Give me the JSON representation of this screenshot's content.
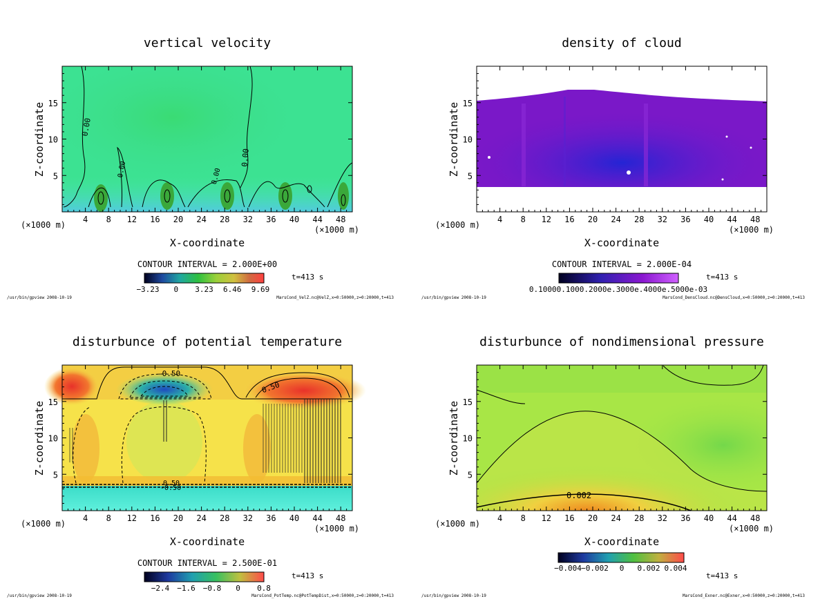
{
  "panels": [
    {
      "id": "velz",
      "title": "vertical velocity",
      "xlabel": "X-coordinate",
      "ylabel": "Z-coordinate",
      "x_unit": "(×1000 m)",
      "x_ticks": [
        "4",
        "8",
        "12",
        "16",
        "20",
        "24",
        "28",
        "32",
        "36",
        "40",
        "44",
        "48"
      ],
      "y_ticks": [
        "5",
        "10",
        "15"
      ],
      "contour_interval": "CONTOUR INTERVAL = 2.000E+00",
      "time": "t=413 s",
      "colorbar_ticks": [
        "−3.23",
        "0",
        "3.23",
        "6.46",
        "9.69"
      ],
      "contour_labels": [
        "0.00",
        "0.00",
        "0.00",
        "0.00"
      ],
      "footer_left": "/usr/bin/gpview   2008-10-19",
      "footer_right": "MarsCond_VelZ.nc@VelZ,x=0:50000,z=0:20000,t=413"
    },
    {
      "id": "denscloud",
      "title": "density of cloud",
      "xlabel": "X-coordinate",
      "ylabel": "Z-coordinate",
      "x_unit": "(×1000 m)",
      "x_ticks": [
        "4",
        "8",
        "12",
        "16",
        "20",
        "24",
        "28",
        "32",
        "36",
        "40",
        "44",
        "48"
      ],
      "y_ticks": [
        "5",
        "10",
        "15"
      ],
      "contour_interval": "CONTOUR INTERVAL = 2.000E-04",
      "time": "t=413 s",
      "colorbar_ticks": [
        "0.10000e-03",
        "0.20000e-03",
        "0.30000e-03",
        "0.40000e-03",
        "0.50000e-03"
      ],
      "colorbar_label_text": "0.10000.1000.2000e.3000e.4000e.5000e-03",
      "contour_labels": [],
      "footer_left": "/usr/bin/gpview   2008-10-19",
      "footer_right": "MarsCond_DensCloud.nc@DensCloud,x=0:50000,z=0:20000,t=413"
    },
    {
      "id": "pottemp",
      "title": "disturbunce of potential temperature",
      "xlabel": "X-coordinate",
      "ylabel": "Z-coordinate",
      "x_unit": "(×1000 m)",
      "x_ticks": [
        "4",
        "8",
        "12",
        "16",
        "20",
        "24",
        "28",
        "32",
        "36",
        "40",
        "44",
        "48"
      ],
      "y_ticks": [
        "5",
        "10",
        "15"
      ],
      "contour_interval": "CONTOUR INTERVAL = 2.500E-01",
      "time": "t=413 s",
      "colorbar_ticks": [
        "−2.4",
        "−1.6",
        "−0.8",
        "0",
        "0.8"
      ],
      "contour_labels": [
        "-0.50",
        "0.50",
        "-0.50",
        "0.50"
      ],
      "footer_left": "/usr/bin/gpview   2008-10-19",
      "footer_right": "MarsCond_PotTemp.nc@PotTempDist,x=0:50000,z=0:20000,t=413"
    },
    {
      "id": "exner",
      "title": "disturbunce of nondimensional pressure",
      "xlabel": "X-coordinate",
      "ylabel": "Z-coordinate",
      "x_unit": "(×1000 m)",
      "x_ticks": [
        "4",
        "8",
        "12",
        "16",
        "20",
        "24",
        "28",
        "32",
        "36",
        "40",
        "44",
        "48"
      ],
      "y_ticks": [
        "5",
        "10",
        "15"
      ],
      "contour_interval": "",
      "time": "t=413 s",
      "colorbar_ticks": [
        "−0.004",
        "−0.002",
        "0",
        "0.002",
        "0.004"
      ],
      "contour_labels": [
        "0.002"
      ],
      "footer_left": "/usr/bin/gpview   2008-10-19",
      "footer_right": "MarsCond_Exner.nc@Exner,x=0:50000,z=0:20000,t=413"
    }
  ],
  "chart_data": [
    {
      "type": "heatmap",
      "title": "vertical velocity",
      "xlabel": "X-coordinate",
      "ylabel": "Z-coordinate",
      "x_unit": "×1000 m",
      "xlim": [
        0,
        50
      ],
      "ylim": [
        0,
        20
      ],
      "x_ticks": [
        4,
        8,
        12,
        16,
        20,
        24,
        28,
        32,
        36,
        40,
        44,
        48
      ],
      "y_ticks": [
        5,
        10,
        15
      ],
      "colorbar_range": [
        -4.0,
        10.0
      ],
      "colorbar_ticks": [
        -3.23,
        0,
        3.23,
        6.46,
        9.69
      ],
      "contour_interval": 2.0,
      "contour_labels": [
        0.0
      ],
      "time_s": 413
    },
    {
      "type": "heatmap",
      "title": "density of cloud",
      "xlabel": "X-coordinate",
      "ylabel": "Z-coordinate",
      "x_unit": "×1000 m",
      "xlim": [
        0,
        50
      ],
      "ylim": [
        0,
        20
      ],
      "x_ticks": [
        4,
        8,
        12,
        16,
        20,
        24,
        28,
        32,
        36,
        40,
        44,
        48
      ],
      "y_ticks": [
        5,
        10,
        15
      ],
      "colorbar_ticks": [
        0.0001,
        0.0002,
        0.0003,
        0.0004,
        0.0005
      ],
      "contour_interval": 0.0002,
      "cloud_layer_z": [
        3.5,
        16.8
      ],
      "time_s": 413
    },
    {
      "type": "heatmap",
      "title": "disturbunce of potential temperature",
      "xlabel": "X-coordinate",
      "ylabel": "Z-coordinate",
      "x_unit": "×1000 m",
      "xlim": [
        0,
        50
      ],
      "ylim": [
        0,
        20
      ],
      "x_ticks": [
        4,
        8,
        12,
        16,
        20,
        24,
        28,
        32,
        36,
        40,
        44,
        48
      ],
      "y_ticks": [
        5,
        10,
        15
      ],
      "colorbar_range": [
        -3.0,
        1.0
      ],
      "colorbar_ticks": [
        -2.4,
        -1.6,
        -0.8,
        0,
        0.8
      ],
      "contour_interval": 0.25,
      "contour_labels": [
        -0.5,
        0.5
      ],
      "time_s": 413
    },
    {
      "type": "heatmap",
      "title": "disturbunce of nondimensional pressure",
      "xlabel": "X-coordinate",
      "ylabel": "Z-coordinate",
      "x_unit": "×1000 m",
      "xlim": [
        0,
        50
      ],
      "ylim": [
        0,
        20
      ],
      "x_ticks": [
        4,
        8,
        12,
        16,
        20,
        24,
        28,
        32,
        36,
        40,
        44,
        48
      ],
      "y_ticks": [
        5,
        10,
        15
      ],
      "colorbar_range": [
        -0.005,
        0.005
      ],
      "colorbar_ticks": [
        -0.004,
        -0.002,
        0,
        0.002,
        0.004
      ],
      "contour_labels": [
        0.002
      ],
      "time_s": 413
    }
  ],
  "colors": {
    "velz_bg": "#3fe48a",
    "cloud_main": "#7a18c8",
    "cloud_core": "#2a2ad0",
    "pottemp_bg": "#f4e84a",
    "pottemp_low": "#56e8d8",
    "pottemp_warm": "#e83a2a",
    "exner_bg": "#a6e646",
    "exner_warm": "#f08a1a"
  }
}
